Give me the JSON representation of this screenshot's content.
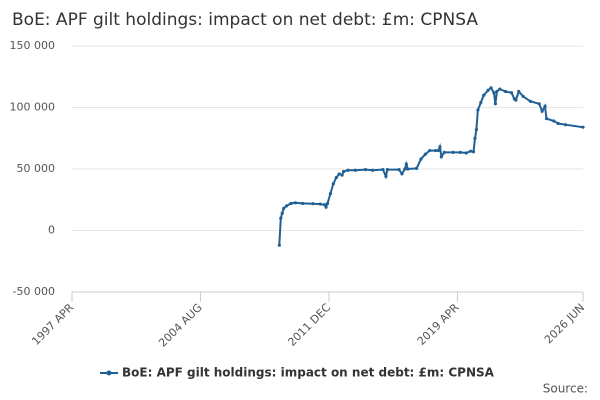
{
  "chart_data": {
    "type": "line",
    "title": "BoE: APF gilt holdings: impact on net debt: £m: CPNSA",
    "source": "Source:",
    "x": [
      "2009 FEB",
      "2009 MAR",
      "2009 APR",
      "2009 MAY",
      "2009 JUL",
      "2009 OCT",
      "2010 JAN",
      "2010 JUN",
      "2011 JAN",
      "2011 JUN",
      "2011 SEP",
      "2011 OCT",
      "2011 NOV",
      "2012 JAN",
      "2012 MAR",
      "2012 MAY",
      "2012 JUL",
      "2012 SEP",
      "2012 OCT",
      "2013 JAN",
      "2013 JUN",
      "2014 JAN",
      "2014 JUN",
      "2015 JAN",
      "2015 MAR",
      "2015 APR",
      "2015 DEC",
      "2016 FEB",
      "2016 APR",
      "2016 MAY",
      "2016 JUN",
      "2016 DEC",
      "2017 MAR",
      "2017 JUN",
      "2017 SEP",
      "2018 JAN",
      "2018 MAR",
      "2018 APR",
      "2018 MAY",
      "2018 JUL",
      "2019 JAN",
      "2019 JUN",
      "2019 OCT",
      "2020 JAN",
      "2020 MAR",
      "2020 APR",
      "2020 MAY",
      "2020 JUN",
      "2020 AUG",
      "2020 OCT",
      "2021 JAN",
      "2021 MAR",
      "2021 MAY",
      "2021 JUN",
      "2021 JUL",
      "2021 SEP",
      "2022 JAN",
      "2022 MAY",
      "2022 JUL",
      "2022 AUG",
      "2022 OCT",
      "2023 JAN",
      "2023 JUN",
      "2023 DEC",
      "2024 FEB",
      "2024 APR",
      "2024 MAY",
      "2024 OCT",
      "2025 JAN",
      "2025 JUN",
      "2026 JUN"
    ],
    "series": [
      {
        "name": "BoE: APF gilt holdings: impact on net debt: £m: CPNSA",
        "color": "#206095",
        "values": [
          -12000,
          10000,
          14000,
          18000,
          20000,
          22000,
          22500,
          22000,
          21800,
          21500,
          21000,
          19000,
          22000,
          30000,
          38000,
          43000,
          46000,
          45000,
          48000,
          49000,
          49000,
          49500,
          49000,
          49500,
          44000,
          49500,
          49500,
          46000,
          50000,
          54000,
          50000,
          50500,
          58000,
          62000,
          65000,
          65000,
          65000,
          68000,
          60000,
          63500,
          63500,
          63500,
          63000,
          64500,
          64000,
          75000,
          82000,
          98000,
          104000,
          110000,
          114000,
          116000,
          112000,
          103000,
          113000,
          115000,
          113000,
          112000,
          107000,
          106000,
          113000,
          109000,
          105000,
          103000,
          97000,
          101000,
          91000,
          89000,
          87000,
          86000,
          84000
        ]
      }
    ],
    "xlim": [
      "1997 APR",
      "2026 JUN"
    ],
    "xticks": [
      "1997 APR",
      "2004 AUG",
      "2011 DEC",
      "2019 APR",
      "2026 JUN"
    ],
    "ylim": [
      -50000,
      150000
    ],
    "yticks": [
      {
        "value": -50000,
        "label": "-50 000"
      },
      0,
      {
        "value": 50000,
        "label": "50 000"
      },
      {
        "value": 100000,
        "label": "100 000"
      },
      {
        "value": 150000,
        "label": "150 000"
      }
    ],
    "grid": true
  }
}
